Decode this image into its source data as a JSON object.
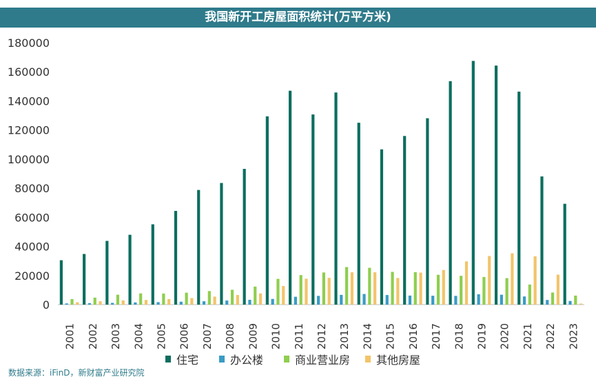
{
  "title": "我国新开工房屋面积统计(万平方米)",
  "source": "数据来源：iFinD，新财富产业研究院",
  "chart_data": {
    "type": "bar",
    "title": "我国新开工房屋面积统计(万平方米)",
    "xlabel": "",
    "ylabel": "",
    "ylim": [
      0,
      180000
    ],
    "yticks": [
      0,
      20000,
      40000,
      60000,
      80000,
      100000,
      120000,
      140000,
      160000,
      180000
    ],
    "grid": false,
    "legend_position": "bottom",
    "categories": [
      "2001",
      "2002",
      "2003",
      "2004",
      "2005",
      "2006",
      "2007",
      "2008",
      "2009",
      "2010",
      "2011",
      "2012",
      "2013",
      "2014",
      "2015",
      "2016",
      "2017",
      "2018",
      "2019",
      "2020",
      "2021",
      "2022",
      "2023"
    ],
    "series": [
      {
        "name": "住宅",
        "color": "#0b6e5f",
        "values": [
          30500,
          34800,
          43800,
          48000,
          55200,
          64400,
          78800,
          83600,
          93300,
          129400,
          147000,
          130700,
          145800,
          125000,
          106700,
          115900,
          128100,
          153600,
          167500,
          164300,
          146400,
          88100,
          69300
        ]
      },
      {
        "name": "办公楼",
        "color": "#3a9cc4",
        "values": [
          800,
          1000,
          1200,
          1500,
          1700,
          2000,
          2300,
          2800,
          3300,
          3900,
          5400,
          6000,
          6700,
          7300,
          6600,
          6200,
          6100,
          6000,
          7100,
          6800,
          5600,
          3200,
          2500
        ]
      },
      {
        "name": "商业营业房",
        "color": "#8fce4f",
        "values": [
          3800,
          4800,
          6800,
          7700,
          7600,
          8200,
          9300,
          10200,
          12400,
          17700,
          20300,
          22100,
          25800,
          25300,
          22500,
          22300,
          20500,
          19800,
          19000,
          18200,
          13800,
          8300,
          6200
        ]
      },
      {
        "name": "其他房屋",
        "color": "#f2c46a",
        "values": [
          1600,
          2300,
          2900,
          3200,
          3800,
          4500,
          5500,
          6600,
          7700,
          12800,
          17800,
          18400,
          22200,
          22200,
          18300,
          22000,
          23800,
          29700,
          33400,
          35300,
          33200,
          20600,
          700
        ]
      }
    ]
  }
}
